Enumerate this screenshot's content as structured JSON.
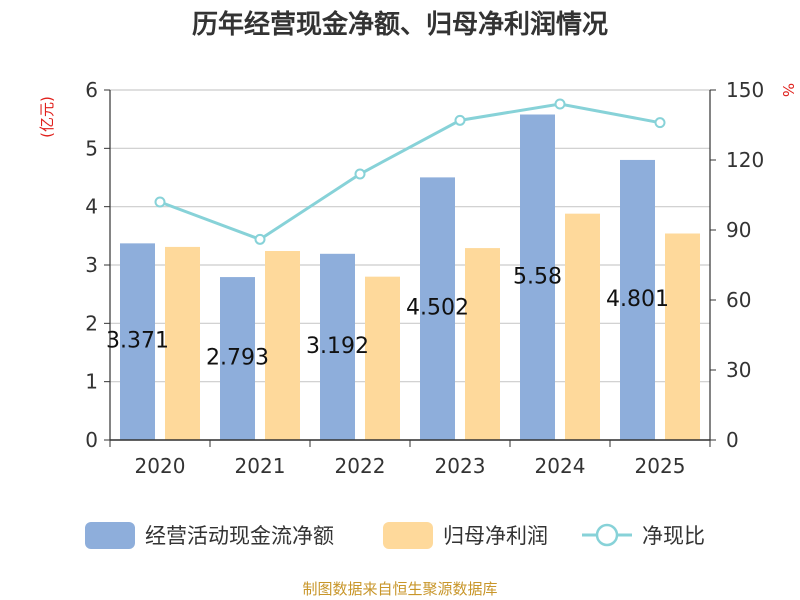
{
  "chart_data": {
    "type": "bar",
    "title": "历年经营现金净额、归母净利润情况",
    "categories": [
      "2020",
      "2021",
      "2022",
      "2023",
      "2024",
      "2025"
    ],
    "series": [
      {
        "name": "经营活动现金流净额",
        "type": "bar",
        "axis": "left",
        "color": "#8eaedb",
        "values": [
          3.371,
          2.793,
          3.192,
          4.502,
          5.58,
          4.801
        ],
        "labels": [
          "3.371",
          "2.793",
          "3.192",
          "4.502",
          "5.58",
          "4.801"
        ]
      },
      {
        "name": "归母净利润",
        "type": "bar",
        "axis": "left",
        "color": "#fed99b",
        "values": [
          3.31,
          3.24,
          2.8,
          3.29,
          3.88,
          3.54
        ]
      },
      {
        "name": "净现比",
        "type": "line",
        "axis": "right",
        "color": "#87d2d8",
        "values": [
          102,
          86,
          114,
          137,
          144,
          136
        ]
      }
    ],
    "ylabel_left": "(亿元)",
    "ylabel_right": "%",
    "ylim_left": [
      0,
      6
    ],
    "yticks_left": [
      "0",
      "1",
      "2",
      "3",
      "4",
      "5",
      "6"
    ],
    "ylim_right": [
      0,
      150
    ],
    "yticks_right": [
      "0",
      "30",
      "60",
      "90",
      "120",
      "150"
    ],
    "grid": true,
    "legend_position": "bottom",
    "source": "制图数据来自恒生聚源数据库"
  }
}
